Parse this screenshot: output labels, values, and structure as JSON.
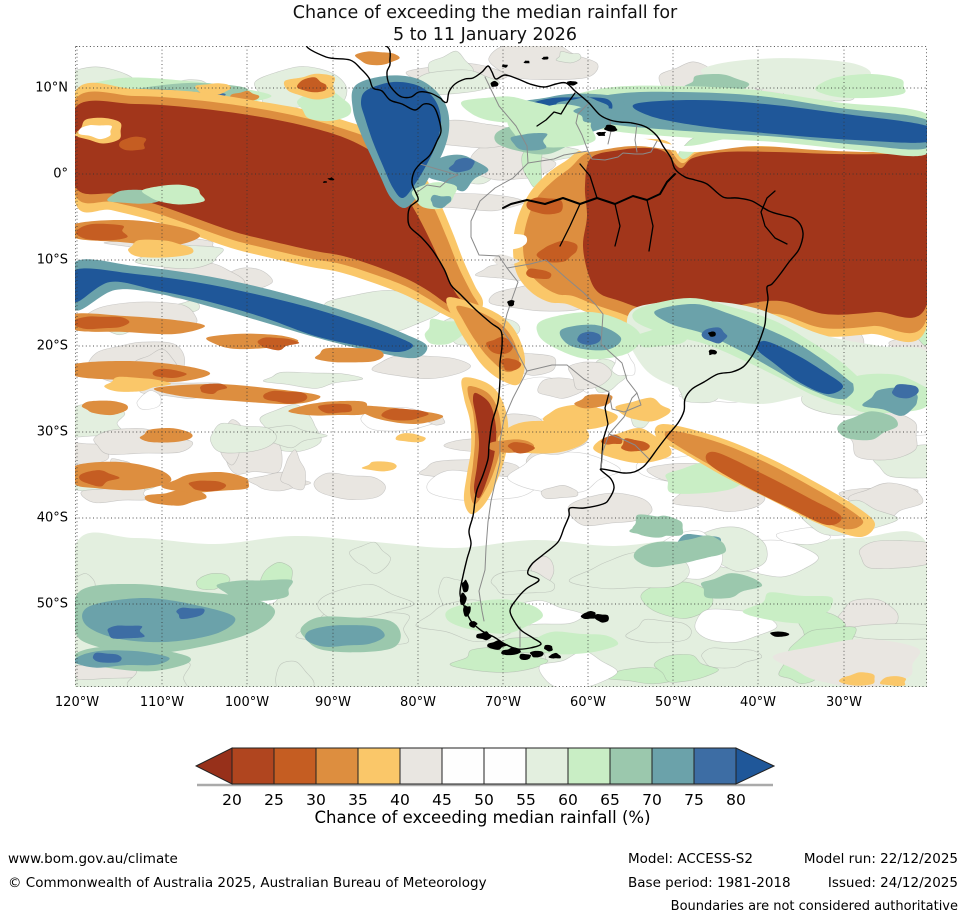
{
  "title": {
    "line1": "Chance of exceeding the median rainfall for",
    "line2": "5 to 11 January 2026"
  },
  "axes": {
    "lat": [
      "10°N",
      "0°",
      "10°S",
      "20°S",
      "30°S",
      "40°S",
      "50°S"
    ],
    "lon": [
      "120°W",
      "110°W",
      "100°W",
      "90°W",
      "80°W",
      "70°W",
      "60°W",
      "50°W",
      "40°W",
      "30°W"
    ]
  },
  "legend": {
    "caption": "Chance of exceeding median rainfall (%)",
    "ticks": [
      "20",
      "25",
      "30",
      "35",
      "40",
      "45",
      "50",
      "55",
      "60",
      "65",
      "70",
      "75",
      "80"
    ],
    "segments": [
      "#b0451f",
      "#c55d22",
      "#dd8e3f",
      "#fac769",
      "#e9e6e1",
      "#fefefe",
      "#fefefe",
      "#e3efdf",
      "#c9eec5",
      "#9bc8ad",
      "#6ba2aa",
      "#3d6da4"
    ],
    "arrow_left": "#97301a",
    "arrow_right": "#1f5799"
  },
  "palette": {
    "dark_red": "#a2361b",
    "red": "#b0451f",
    "dark_orange": "#c55d22",
    "orange": "#dd8e3f",
    "yellow": "#fac769",
    "lgray": "#e9e6e1",
    "white": "#ffffff",
    "pgreen": "#e3efdf",
    "green": "#c9eec5",
    "tealgreen": "#9bc8ad",
    "teal": "#6ba2aa",
    "blue": "#3d6da4",
    "dark_blue": "#1f5799",
    "coast": "#000000",
    "border": "#8a8a8a",
    "grid": "#333333"
  },
  "footer": {
    "site": "www.bom.gov.au/climate",
    "copyright": "© Commonwealth of Australia 2025, Australian Bureau of Meteorology",
    "model": "Model: ACCESS-S2",
    "model_run": "Model run: 22/12/2025",
    "base_period": "Base period: 1981-2018",
    "issued": "Issued: 24/12/2025",
    "note": "Boundaries are not considered authoritative"
  },
  "map_regions": [
    {
      "feature": "ITCZ high-chance band",
      "value": "75->80%",
      "extent": "about 4-9N across east Pacific, Panama bight and tropical Atlantic"
    },
    {
      "feature": "Equatorial Pacific low-chance band",
      "value": "<20%",
      "extent": "about 8N-9S from 120W to the Peru coast"
    },
    {
      "feature": "NE Brazil and tropical Atlantic low-chance",
      "value": "<20%",
      "extent": "about 2N-14S east of 60W to map edge"
    },
    {
      "feature": "South Pacific high-chance band",
      "value": "75->80%",
      "extent": "about 10-19S, 120W-80W"
    },
    {
      "feature": "Chile coast low-chance strip",
      "value": "20-30%",
      "extent": "about 24-34S along the coast"
    },
    {
      "feature": "SE Brazil / SW Atlantic high-chance",
      "value": "65-80%",
      "extent": "about 17-27S, 60W-20W"
    },
    {
      "feature": "South Atlantic low-chance diagonal band",
      "value": "25-40%",
      "extent": "from Uruguay toward 40S 30W"
    },
    {
      "feature": "Southern Ocean moderate-high chance belt",
      "value": "55-75%",
      "extent": "south of about 43S"
    }
  ]
}
